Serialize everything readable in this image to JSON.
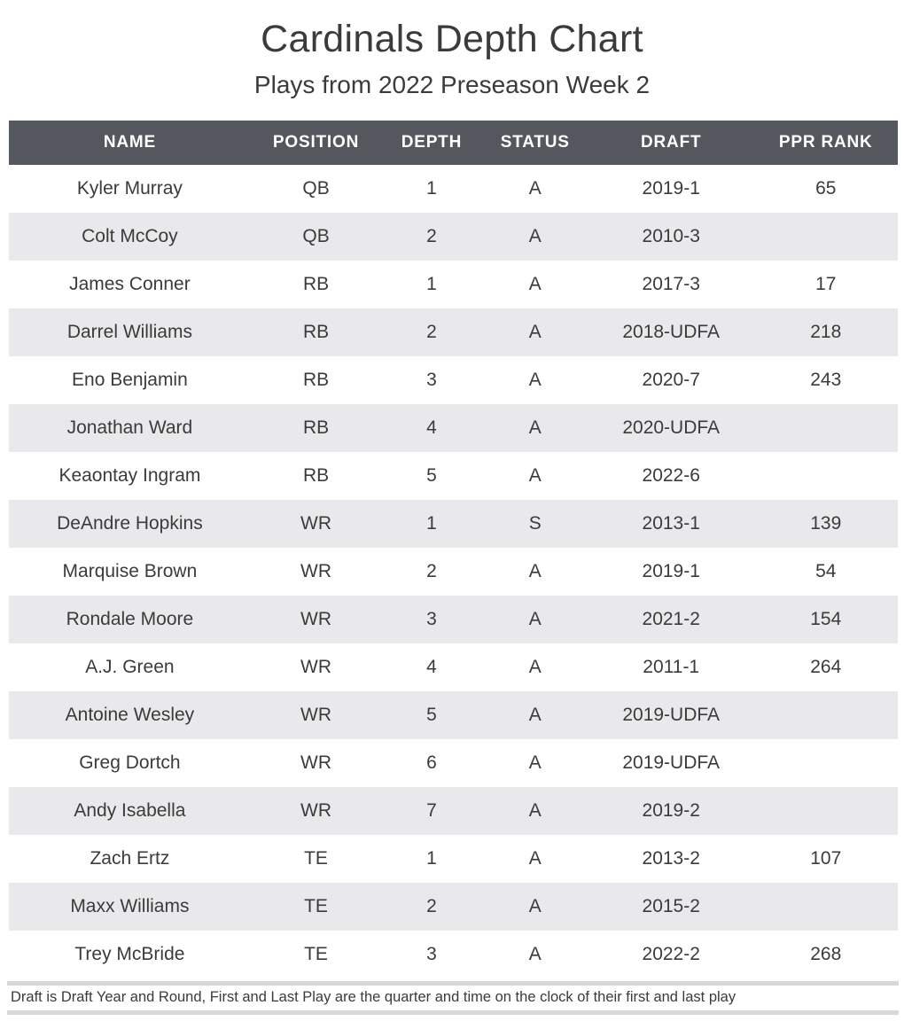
{
  "title": "Cardinals Depth Chart",
  "subtitle": "Plays from 2022 Preseason Week 2",
  "footnote": "Draft is Draft Year and Round, First and Last Play are the quarter and time on the clock of their first and last play",
  "colors": {
    "header_bg": "#54585e",
    "header_text": "#ffffff",
    "stripe_bg": "#e9e9eb",
    "row_bg": "#ffffff",
    "body_text": "#3b3b3b",
    "rule_color": "#d8d8d8"
  },
  "chart_data": {
    "type": "table",
    "title": "Cardinals Depth Chart",
    "subtitle": "Plays from 2022 Preseason Week 2",
    "columns": [
      "NAME",
      "POSITION",
      "DEPTH",
      "STATUS",
      "DRAFT",
      "PPR RANK"
    ],
    "rows": [
      [
        "Kyler Murray",
        "QB",
        "1",
        "A",
        "2019-1",
        "65"
      ],
      [
        "Colt McCoy",
        "QB",
        "2",
        "A",
        "2010-3",
        ""
      ],
      [
        "James Conner",
        "RB",
        "1",
        "A",
        "2017-3",
        "17"
      ],
      [
        "Darrel Williams",
        "RB",
        "2",
        "A",
        "2018-UDFA",
        "218"
      ],
      [
        "Eno Benjamin",
        "RB",
        "3",
        "A",
        "2020-7",
        "243"
      ],
      [
        "Jonathan Ward",
        "RB",
        "4",
        "A",
        "2020-UDFA",
        ""
      ],
      [
        "Keaontay Ingram",
        "RB",
        "5",
        "A",
        "2022-6",
        ""
      ],
      [
        "DeAndre Hopkins",
        "WR",
        "1",
        "S",
        "2013-1",
        "139"
      ],
      [
        "Marquise Brown",
        "WR",
        "2",
        "A",
        "2019-1",
        "54"
      ],
      [
        "Rondale Moore",
        "WR",
        "3",
        "A",
        "2021-2",
        "154"
      ],
      [
        "A.J. Green",
        "WR",
        "4",
        "A",
        "2011-1",
        "264"
      ],
      [
        "Antoine Wesley",
        "WR",
        "5",
        "A",
        "2019-UDFA",
        ""
      ],
      [
        "Greg Dortch",
        "WR",
        "6",
        "A",
        "2019-UDFA",
        ""
      ],
      [
        "Andy Isabella",
        "WR",
        "7",
        "A",
        "2019-2",
        ""
      ],
      [
        "Zach Ertz",
        "TE",
        "1",
        "A",
        "2013-2",
        "107"
      ],
      [
        "Maxx Williams",
        "TE",
        "2",
        "A",
        "2015-2",
        ""
      ],
      [
        "Trey McBride",
        "TE",
        "3",
        "A",
        "2022-2",
        "268"
      ]
    ],
    "footnote": "Draft is Draft Year and Round, First and Last Play are the quarter and time on the clock of their first and last play",
    "layout": {
      "stripe": "alternating rows, first row white",
      "legend": "none",
      "grid": "off"
    }
  }
}
